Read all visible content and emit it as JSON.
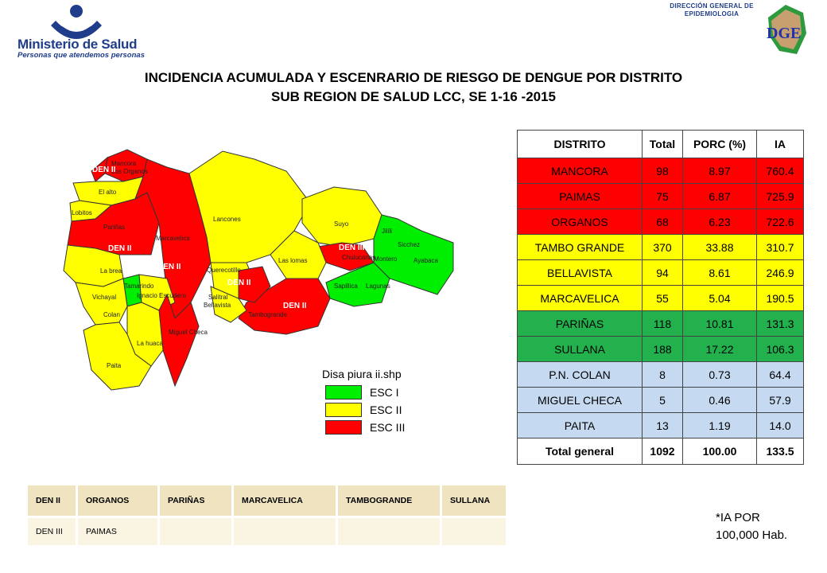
{
  "header": {
    "minsa_name": "Ministerio de Salud",
    "minsa_tagline": "Personas que atendemos personas",
    "dge_line1": "DIRECCIÓN GENERAL DE",
    "dge_line2": "EPIDEMIOLOGIA",
    "dge_logo_text": "DGE"
  },
  "title": {
    "line1": "INCIDENCIA ACUMULADA Y ESCENRARIO DE RIESGO DE DENGUE POR DISTRITO",
    "line2": "SUB REGION DE SALUD LCC, SE 1-16 -2015"
  },
  "map": {
    "districts": [
      "Mancora",
      "Los Organos",
      "El alto",
      "Lobitos",
      "Pariñas",
      "Marcavelica",
      "Lancones",
      "Suyo",
      "Jilili",
      "Sicchez",
      "Montero",
      "Ayabaca",
      "Chulucanas",
      "Las lomas",
      "Sapillica",
      "Lagunas",
      "Querecotillo",
      "Salitral",
      "Bellavista",
      "La brea",
      "Tamarindo",
      "Ignacio Escudero",
      "Vichayal",
      "Colan",
      "Miguel Checa",
      "La huaca",
      "Tambogrande",
      "Paita"
    ],
    "den_labels": [
      "DEN II",
      "DEN II",
      "DEN II",
      "DEN II",
      "DEN III",
      "DEN II"
    ],
    "colors": {
      "esc1": "#00ee00",
      "esc2": "#ffff00",
      "esc3": "#ff0000"
    }
  },
  "legend": {
    "title": "Disa piura ii.shp",
    "items": [
      {
        "label": "ESC I",
        "color": "#00ee00"
      },
      {
        "label": "ESC II",
        "color": "#ffff00"
      },
      {
        "label": "ESC III",
        "color": "#ff0000"
      }
    ]
  },
  "table": {
    "headers": [
      "DISTRITO",
      "Total",
      "PORC (%)",
      "IA"
    ],
    "rows": [
      {
        "distrito": "MANCORA",
        "total": "98",
        "porc": "8.97",
        "ia": "760.4",
        "group": "red"
      },
      {
        "distrito": "PAIMAS",
        "total": "75",
        "porc": "6.87",
        "ia": "725.9",
        "group": "red"
      },
      {
        "distrito": "ORGANOS",
        "total": "68",
        "porc": "6.23",
        "ia": "722.6",
        "group": "red"
      },
      {
        "distrito": "TAMBO GRANDE",
        "total": "370",
        "porc": "33.88",
        "ia": "310.7",
        "group": "yellow"
      },
      {
        "distrito": "BELLAVISTA",
        "total": "94",
        "porc": "8.61",
        "ia": "246.9",
        "group": "yellow"
      },
      {
        "distrito": "MARCAVELICA",
        "total": "55",
        "porc": "5.04",
        "ia": "190.5",
        "group": "yellow"
      },
      {
        "distrito": "PARIÑAS",
        "total": "118",
        "porc": "10.81",
        "ia": "131.3",
        "group": "green"
      },
      {
        "distrito": "SULLANA",
        "total": "188",
        "porc": "17.22",
        "ia": "106.3",
        "group": "green"
      },
      {
        "distrito": "P.N. COLAN",
        "total": "8",
        "porc": "0.73",
        "ia": "64.4",
        "group": "blue"
      },
      {
        "distrito": "MIGUEL CHECA",
        "total": "5",
        "porc": "0.46",
        "ia": "57.9",
        "group": "blue"
      },
      {
        "distrito": "PAITA",
        "total": "13",
        "porc": "1.19",
        "ia": "14.0",
        "group": "blue"
      }
    ],
    "total": {
      "distrito": "Total general",
      "total": "1092",
      "porc": "100.00",
      "ia": "133.5"
    }
  },
  "den_table": {
    "row1": [
      "DEN II",
      "ORGANOS",
      "PARIÑAS",
      "MARCAVELICA",
      "TAMBOGRANDE",
      "SULLANA"
    ],
    "row2": [
      "DEN III",
      "PAIMAS",
      "",
      "",
      "",
      ""
    ]
  },
  "footnote": {
    "line1": "*IA POR",
    "line2": "100,000 Hab."
  }
}
